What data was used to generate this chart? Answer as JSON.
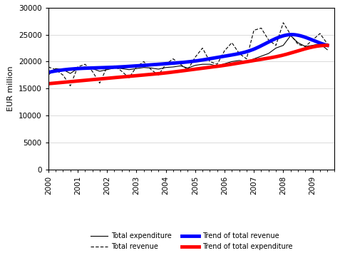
{
  "title": "",
  "ylabel": "EUR million",
  "xlabel": "",
  "ylim": [
    0,
    30000
  ],
  "yticks": [
    0,
    5000,
    10000,
    15000,
    20000,
    25000,
    30000
  ],
  "xlim": [
    2000.0,
    2009.75
  ],
  "xticks": [
    2000,
    2001,
    2002,
    2003,
    2004,
    2005,
    2006,
    2007,
    2008,
    2009
  ],
  "total_expenditure_x": [
    2000.0,
    2000.25,
    2000.5,
    2000.75,
    2001.0,
    2001.25,
    2001.5,
    2001.75,
    2002.0,
    2002.25,
    2002.5,
    2002.75,
    2003.0,
    2003.25,
    2003.5,
    2003.75,
    2004.0,
    2004.25,
    2004.5,
    2004.75,
    2005.0,
    2005.25,
    2005.5,
    2005.75,
    2006.0,
    2006.25,
    2006.5,
    2006.75,
    2007.0,
    2007.25,
    2007.5,
    2007.75,
    2008.0,
    2008.25,
    2008.5,
    2008.75,
    2009.0,
    2009.25,
    2009.5
  ],
  "total_expenditure_y": [
    17500,
    18700,
    18500,
    17800,
    18700,
    19000,
    18700,
    18200,
    18500,
    18800,
    18700,
    18500,
    18700,
    18900,
    18800,
    18600,
    18900,
    19000,
    19200,
    18800,
    19300,
    19500,
    19500,
    19200,
    19600,
    20000,
    20200,
    20000,
    20500,
    21000,
    21500,
    22500,
    23000,
    24800,
    23500,
    22800,
    23000,
    23300,
    22200
  ],
  "total_revenue_x": [
    2000.0,
    2000.25,
    2000.5,
    2000.75,
    2001.0,
    2001.25,
    2001.5,
    2001.75,
    2002.0,
    2002.25,
    2002.5,
    2002.75,
    2003.0,
    2003.25,
    2003.5,
    2003.75,
    2004.0,
    2004.25,
    2004.5,
    2004.75,
    2005.0,
    2005.25,
    2005.5,
    2005.75,
    2006.0,
    2006.25,
    2006.5,
    2006.75,
    2007.0,
    2007.25,
    2007.5,
    2007.75,
    2008.0,
    2008.25,
    2008.5,
    2008.75,
    2009.0,
    2009.25,
    2009.5
  ],
  "total_revenue_y": [
    19000,
    18500,
    17500,
    15500,
    19000,
    19500,
    18200,
    16000,
    19000,
    19200,
    18200,
    17000,
    19000,
    20000,
    18500,
    17500,
    19500,
    20500,
    19500,
    18500,
    20800,
    22500,
    20000,
    19500,
    22000,
    23500,
    21500,
    20500,
    25800,
    26200,
    24000,
    23000,
    27200,
    25000,
    23200,
    22800,
    24000,
    25200,
    23300
  ],
  "trend_revenue_nodes_x": [
    2000.0,
    2001.0,
    2002.0,
    2003.0,
    2004.0,
    2005.0,
    2006.0,
    2007.0,
    2008.25,
    2008.75,
    2009.5
  ],
  "trend_revenue_nodes_y": [
    18000,
    18700,
    18900,
    19200,
    19600,
    20100,
    21000,
    22300,
    25000,
    24500,
    23000
  ],
  "trend_expenditure_nodes_x": [
    2000.0,
    2001.0,
    2002.0,
    2003.0,
    2004.0,
    2005.0,
    2006.0,
    2007.0,
    2008.0,
    2009.0,
    2009.5
  ],
  "trend_expenditure_nodes_y": [
    15900,
    16400,
    16900,
    17400,
    17900,
    18600,
    19300,
    20200,
    21200,
    22700,
    23000
  ],
  "expenditure_color": "#000000",
  "revenue_color": "#000000",
  "trend_revenue_color": "#0000FF",
  "trend_expenditure_color": "#FF0000",
  "background_color": "#FFFFFF",
  "legend_labels": [
    "Total expenditure",
    "Total revenue",
    "Trend of total revenue",
    "Trend of total expenditure"
  ],
  "fig_width": 4.84,
  "fig_height": 3.55,
  "dpi": 100
}
